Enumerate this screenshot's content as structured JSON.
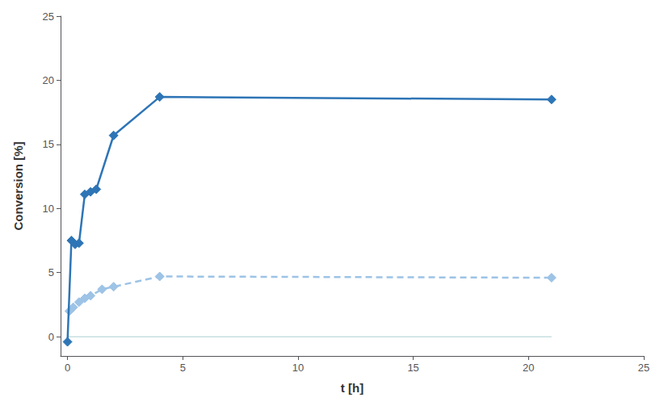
{
  "chart_data": {
    "type": "line",
    "xlabel": "t [h]",
    "ylabel": "Conversion [%]",
    "series": [
      {
        "type": "line",
        "x": [
          0.0,
          21.0
        ],
        "values": [
          0.0,
          0.0
        ],
        "color": "#AACFCF",
        "line_style": "solid"
      },
      {
        "type": "line",
        "x": [
          0.08,
          0.25,
          0.5,
          0.75,
          1.0,
          1.5,
          2.0,
          4.0,
          21.0
        ],
        "values": [
          2.0,
          2.3,
          2.7,
          3.0,
          3.2,
          3.7,
          3.9,
          4.7,
          4.6
        ],
        "color": "#9DC3E6",
        "line_style": "dashed",
        "marker": "diamond"
      },
      {
        "type": "line",
        "x": [
          0.0,
          0.17,
          0.33,
          0.5,
          0.75,
          1.0,
          1.25,
          2.0,
          4.0,
          21.0
        ],
        "values": [
          -0.4,
          7.5,
          7.2,
          7.3,
          11.1,
          11.3,
          11.5,
          15.7,
          18.7,
          18.5
        ],
        "color": "#2E75B6",
        "line_style": "solid",
        "marker": "diamond"
      }
    ],
    "xlim": [
      -0.3,
      25
    ],
    "ylim": [
      -1.5,
      25
    ],
    "xticks": [
      0,
      5,
      10,
      15,
      20,
      25
    ],
    "yticks": [
      0,
      5,
      10,
      15,
      20,
      25
    ],
    "grid": false
  }
}
